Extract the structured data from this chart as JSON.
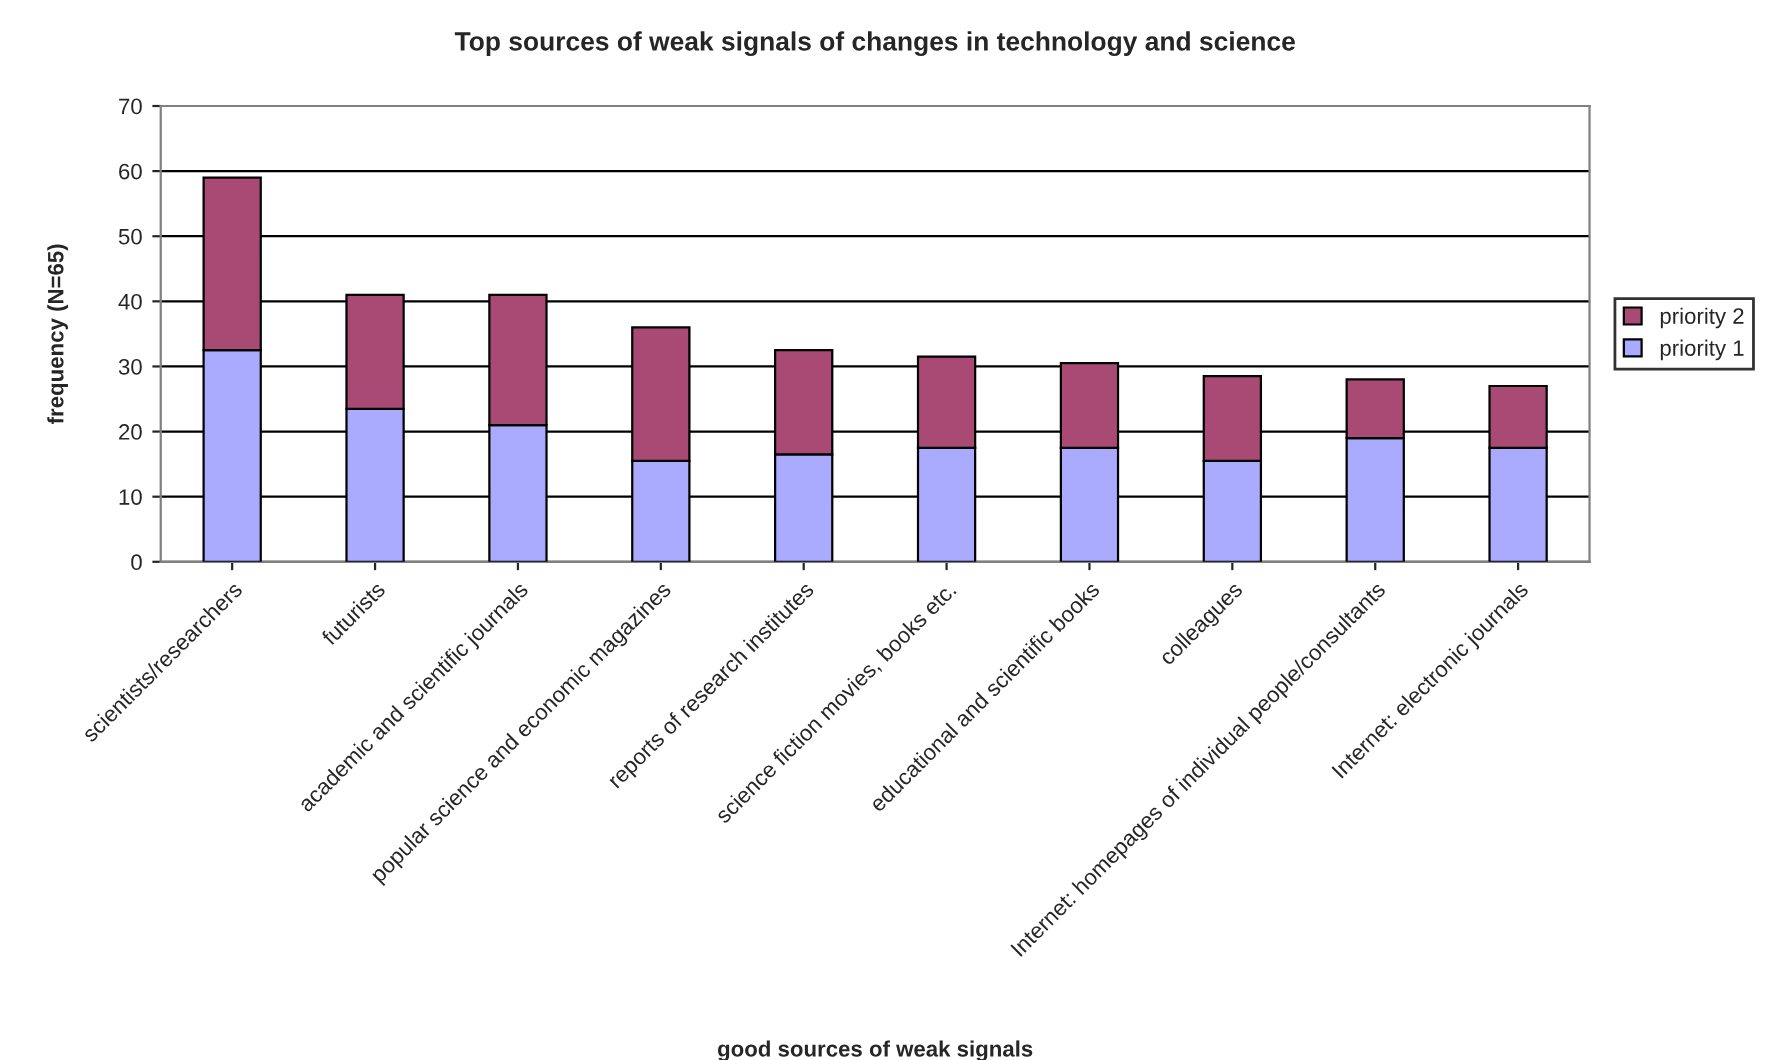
{
  "chart_data": {
    "type": "bar",
    "title": "Top sources of weak signals of changes in technology and science",
    "xlabel": "good sources of weak signals",
    "ylabel": "frequency (N=65)",
    "categories": [
      "scientists/researchers",
      "futurists",
      "academic and scientific journals",
      "popular science and economic magazines",
      "reports of research institutes",
      "science fiction movies, books etc.",
      "educational and scientific books",
      "colleagues",
      "Internet: homepages of individual people/consultants",
      "Internet: electronic journals"
    ],
    "stacked": true,
    "series": [
      {
        "name": "priority 1",
        "color": "#aaaaff",
        "values": [
          32.5,
          23.5,
          21,
          15.5,
          16.5,
          17.5,
          17.5,
          15.5,
          19,
          17.5
        ]
      },
      {
        "name": "priority 2",
        "color": "#a94a75",
        "values": [
          26.5,
          17.5,
          20,
          20.5,
          16,
          14,
          13,
          13,
          9,
          9.5
        ]
      }
    ],
    "ylim": [
      0,
      70
    ],
    "yticks": [
      0,
      10,
      20,
      30,
      40,
      50,
      60,
      70
    ],
    "grid": "y",
    "legend": "right"
  }
}
